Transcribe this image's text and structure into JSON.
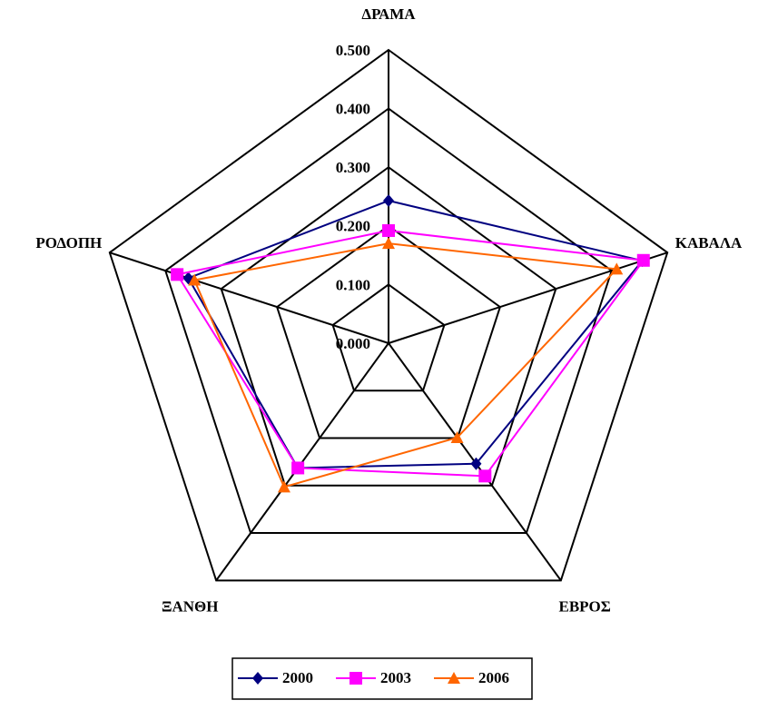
{
  "chart_data": {
    "type": "radar",
    "categories": [
      "ΔΡΑΜΑ",
      "ΚΑΒΑΛΑ",
      "ΕΒΡΟΣ",
      "ΞΑΝΘΗ",
      "ΡΟΔΟΠΗ"
    ],
    "series": [
      {
        "name": "2000",
        "color": "#000080",
        "marker": "diamond",
        "values": [
          0.243,
          0.455,
          0.254,
          0.263,
          0.359
        ]
      },
      {
        "name": "2003",
        "color": "#ff00ff",
        "marker": "square",
        "values": [
          0.192,
          0.457,
          0.28,
          0.263,
          0.379
        ]
      },
      {
        "name": "2006",
        "color": "#ff6600",
        "marker": "triangle",
        "values": [
          0.17,
          0.409,
          0.199,
          0.303,
          0.348
        ]
      }
    ],
    "ylim": [
      0,
      0.5
    ],
    "yticks": [
      {
        "value": 0,
        "label": "0.000"
      },
      {
        "value": 0.1,
        "label": "0.100"
      },
      {
        "value": 0.2,
        "label": "0.200"
      },
      {
        "value": 0.3,
        "label": "0.300"
      },
      {
        "value": 0.4,
        "label": "0.400"
      },
      {
        "value": 0.5,
        "label": "0.500"
      }
    ],
    "grid": true,
    "legend": "bottom"
  }
}
